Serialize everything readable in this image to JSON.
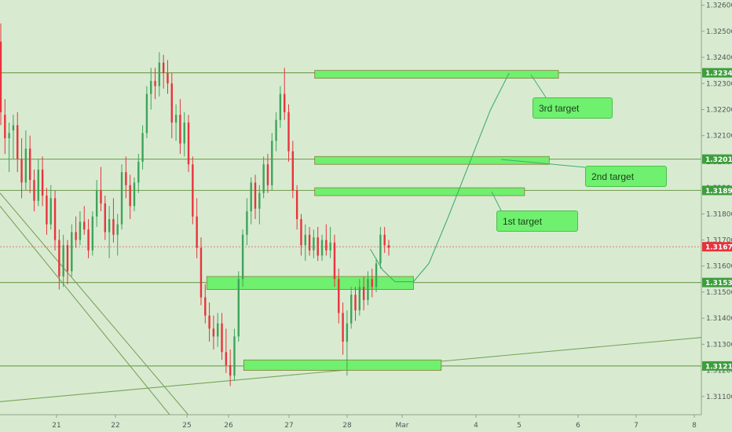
{
  "chart_data": {
    "type": "candlestick",
    "ylim": [
      1.3103,
      1.3262
    ],
    "x_days": [
      20.6,
      29.0
    ],
    "y_tick_labels": [
      "1.32600",
      "1.32500",
      "1.32400",
      "1.32300",
      "1.32200",
      "1.32100",
      "1.32000",
      "1.31900",
      "1.31800",
      "1.31700",
      "1.31600",
      "1.31500",
      "1.31400",
      "1.31300",
      "1.31200",
      "1.31100"
    ],
    "y_ticks": [
      1.326,
      1.325,
      1.324,
      1.323,
      1.322,
      1.321,
      1.32,
      1.319,
      1.318,
      1.317,
      1.316,
      1.315,
      1.314,
      1.313,
      1.312,
      1.311
    ],
    "x_ticks": [
      {
        "label": "21",
        "day": 21
      },
      {
        "label": "22",
        "day": 22
      },
      {
        "label": "25",
        "day": 23
      },
      {
        "label": "26",
        "day": 23.7
      },
      {
        "label": "27",
        "day": 24.7
      },
      {
        "label": "28",
        "day": 25.7
      },
      {
        "label": "Mar",
        "day": 26.7
      },
      {
        "label": "4",
        "day": 27.95
      },
      {
        "label": "5",
        "day": 28.95
      },
      {
        "label": "6",
        "day": 29.95
      },
      {
        "label": "7",
        "day": 30.95
      },
      {
        "label": "8",
        "day": 31.95
      }
    ],
    "levels": [
      {
        "label": "1.32341",
        "price": 1.32341,
        "style": "green"
      },
      {
        "label": "1.32010",
        "price": 1.3201,
        "style": "green"
      },
      {
        "label": "1.31890",
        "price": 1.3189,
        "style": "green"
      },
      {
        "label": "1.31674",
        "price": 1.31674,
        "style": "red"
      },
      {
        "label": "1.31537",
        "price": 1.31537,
        "style": "green"
      },
      {
        "label": "1.31217",
        "price": 1.31217,
        "style": "green"
      }
    ],
    "zones": [
      {
        "price_low": 1.3232,
        "price_high": 1.3235,
        "day_start": 25.7,
        "day_end": 29.65
      },
      {
        "price_low": 1.3199,
        "price_high": 1.3202,
        "day_start": 25.7,
        "day_end": 29.5
      },
      {
        "price_low": 1.3187,
        "price_high": 1.319,
        "day_start": 25.7,
        "day_end": 29.1
      },
      {
        "price_low": 1.3151,
        "price_high": 1.3156,
        "day_start": 23.95,
        "day_end": 27.3
      },
      {
        "price_low": 1.312,
        "price_high": 1.3124,
        "day_start": 24.55,
        "day_end": 27.75
      }
    ],
    "candles": [
      [
        1.3246,
        1.3253,
        1.3214,
        1.3219
      ],
      [
        1.3218,
        1.3224,
        1.3203,
        1.3209
      ],
      [
        1.3209,
        1.3215,
        1.3196,
        1.3211
      ],
      [
        1.3212,
        1.3218,
        1.3201,
        1.3214
      ],
      [
        1.3214,
        1.3219,
        1.3196,
        1.3201
      ],
      [
        1.3201,
        1.3209,
        1.3186,
        1.3192
      ],
      [
        1.3192,
        1.3212,
        1.3189,
        1.3205
      ],
      [
        1.3205,
        1.321,
        1.3188,
        1.3193
      ],
      [
        1.3193,
        1.3197,
        1.3181,
        1.3185
      ],
      [
        1.3185,
        1.3201,
        1.3183,
        1.3197
      ],
      [
        1.3197,
        1.3202,
        1.3183,
        1.3187
      ],
      [
        1.3187,
        1.319,
        1.3172,
        1.3176
      ],
      [
        1.3176,
        1.3191,
        1.3174,
        1.3186
      ],
      [
        1.3186,
        1.3189,
        1.3166,
        1.317
      ],
      [
        1.317,
        1.3174,
        1.3151,
        1.3156
      ],
      [
        1.3156,
        1.3172,
        1.3152,
        1.3168
      ],
      [
        1.3168,
        1.317,
        1.3153,
        1.3158
      ],
      [
        1.3158,
        1.3176,
        1.3156,
        1.3173
      ],
      [
        1.3173,
        1.3179,
        1.3167,
        1.317
      ],
      [
        1.317,
        1.3181,
        1.3168,
        1.3177
      ],
      [
        1.3177,
        1.3183,
        1.3172,
        1.3174
      ],
      [
        1.3174,
        1.3178,
        1.3163,
        1.3166
      ],
      [
        1.3166,
        1.3181,
        1.3164,
        1.3179
      ],
      [
        1.3179,
        1.3193,
        1.3175,
        1.3189
      ],
      [
        1.3189,
        1.3198,
        1.3181,
        1.3184
      ],
      [
        1.3184,
        1.3187,
        1.317,
        1.3173
      ],
      [
        1.3173,
        1.3183,
        1.3163,
        1.3178
      ],
      [
        1.3178,
        1.3186,
        1.3169,
        1.3172
      ],
      [
        1.3172,
        1.318,
        1.3164,
        1.3176
      ],
      [
        1.3176,
        1.3199,
        1.3174,
        1.3196
      ],
      [
        1.3196,
        1.3202,
        1.3186,
        1.3191
      ],
      [
        1.3191,
        1.3195,
        1.3178,
        1.3183
      ],
      [
        1.3183,
        1.3194,
        1.3181,
        1.3192
      ],
      [
        1.3192,
        1.3203,
        1.3188,
        1.32
      ],
      [
        1.32,
        1.3214,
        1.3197,
        1.3211
      ],
      [
        1.3211,
        1.3229,
        1.3209,
        1.3226
      ],
      [
        1.3226,
        1.3236,
        1.322,
        1.3231
      ],
      [
        1.3231,
        1.3236,
        1.3224,
        1.3229
      ],
      [
        1.3229,
        1.3242,
        1.3225,
        1.3238
      ],
      [
        1.3238,
        1.3241,
        1.3228,
        1.3234
      ],
      [
        1.3234,
        1.3239,
        1.3226,
        1.323
      ],
      [
        1.323,
        1.3234,
        1.3209,
        1.3215
      ],
      [
        1.3215,
        1.3222,
        1.3208,
        1.3218
      ],
      [
        1.3218,
        1.3224,
        1.3203,
        1.3207
      ],
      [
        1.3207,
        1.3219,
        1.3202,
        1.3215
      ],
      [
        1.3215,
        1.3218,
        1.3196,
        1.3199
      ],
      [
        1.3199,
        1.3202,
        1.3176,
        1.3179
      ],
      [
        1.3179,
        1.3186,
        1.3163,
        1.3167
      ],
      [
        1.3167,
        1.3171,
        1.3145,
        1.3148
      ],
      [
        1.3148,
        1.3153,
        1.3138,
        1.3141
      ],
      [
        1.3141,
        1.3146,
        1.3131,
        1.3136
      ],
      [
        1.3136,
        1.3141,
        1.3128,
        1.3133
      ],
      [
        1.3133,
        1.3142,
        1.3129,
        1.3138
      ],
      [
        1.3138,
        1.3142,
        1.3124,
        1.3127
      ],
      [
        1.3127,
        1.3136,
        1.3119,
        1.3122
      ],
      [
        1.3122,
        1.3128,
        1.3114,
        1.3118
      ],
      [
        1.3118,
        1.3136,
        1.3116,
        1.3133
      ],
      [
        1.3133,
        1.3158,
        1.3131,
        1.3155
      ],
      [
        1.3155,
        1.3174,
        1.3152,
        1.3172
      ],
      [
        1.3172,
        1.3186,
        1.3168,
        1.3181
      ],
      [
        1.3181,
        1.3194,
        1.3176,
        1.3192
      ],
      [
        1.3192,
        1.3195,
        1.3178,
        1.3182
      ],
      [
        1.3182,
        1.3191,
        1.3176,
        1.3188
      ],
      [
        1.3188,
        1.3202,
        1.3186,
        1.3199
      ],
      [
        1.3199,
        1.3203,
        1.3188,
        1.3191
      ],
      [
        1.3191,
        1.3211,
        1.3189,
        1.3208
      ],
      [
        1.3208,
        1.3219,
        1.3204,
        1.3216
      ],
      [
        1.3216,
        1.3229,
        1.3213,
        1.3226
      ],
      [
        1.3226,
        1.3236,
        1.3216,
        1.3219
      ],
      [
        1.3219,
        1.3222,
        1.32,
        1.3204
      ],
      [
        1.3204,
        1.3208,
        1.3186,
        1.3189
      ],
      [
        1.3189,
        1.3191,
        1.3174,
        1.3178
      ],
      [
        1.3178,
        1.318,
        1.3164,
        1.3168
      ],
      [
        1.3168,
        1.3176,
        1.3162,
        1.3172
      ],
      [
        1.3172,
        1.3175,
        1.3164,
        1.3166
      ],
      [
        1.3166,
        1.3174,
        1.3163,
        1.3171
      ],
      [
        1.3171,
        1.3175,
        1.3162,
        1.3164
      ],
      [
        1.3164,
        1.3172,
        1.3162,
        1.317
      ],
      [
        1.317,
        1.3176,
        1.3164,
        1.3166
      ],
      [
        1.3166,
        1.3175,
        1.3163,
        1.3169
      ],
      [
        1.3169,
        1.3172,
        1.3152,
        1.3155
      ],
      [
        1.3155,
        1.3159,
        1.3138,
        1.3142
      ],
      [
        1.3142,
        1.3146,
        1.3126,
        1.3131
      ],
      [
        1.3131,
        1.3143,
        1.3118,
        1.3138
      ],
      [
        1.3138,
        1.3152,
        1.3136,
        1.3149
      ],
      [
        1.3149,
        1.3152,
        1.3139,
        1.3143
      ],
      [
        1.3143,
        1.3155,
        1.3141,
        1.3152
      ],
      [
        1.3152,
        1.3156,
        1.3143,
        1.3147
      ],
      [
        1.3147,
        1.3158,
        1.3145,
        1.3155
      ],
      [
        1.3155,
        1.3159,
        1.3148,
        1.3152
      ],
      [
        1.3152,
        1.3163,
        1.315,
        1.3161
      ],
      [
        1.3161,
        1.3175,
        1.3159,
        1.3172
      ],
      [
        1.3172,
        1.3175,
        1.3165,
        1.3168
      ],
      [
        1.3168,
        1.317,
        1.3164,
        1.3167
      ]
    ],
    "projection_path": [
      [
        26.6,
        1.31665
      ],
      [
        26.8,
        1.31585
      ],
      [
        27.0,
        1.3154
      ],
      [
        27.3,
        1.3154
      ],
      [
        27.55,
        1.3161
      ],
      [
        27.85,
        1.3178
      ],
      [
        28.2,
        1.3199
      ],
      [
        28.55,
        1.322
      ],
      [
        28.85,
        1.3234
      ]
    ],
    "pointer_from": [
      [
        28.95,
        1.3233
      ],
      [
        28.95,
        1.3202
      ],
      [
        26.6,
        1.3188
      ]
    ],
    "trendlines": [
      {
        "from": [
          20.6,
          1.3188
        ],
        "to": [
          23.65,
          1.3103
        ]
      },
      {
        "from": [
          20.6,
          1.3183
        ],
        "to": [
          23.35,
          1.3103
        ]
      },
      {
        "from": [
          20.6,
          1.3108
        ],
        "to": [
          32.6,
          1.3134
        ]
      }
    ]
  },
  "annotations": [
    {
      "text": "3rd target"
    },
    {
      "text": "2nd target"
    },
    {
      "text": "1st target"
    }
  ],
  "colors": {
    "background": "#d8ebd1",
    "up_candle": "#3fa35a",
    "down_candle": "#e8333c",
    "level_line": "#7aa35a",
    "zone_fill": "#6ff06f",
    "current_price_line": "#e05555",
    "current_price_tag": "#e8333c",
    "level_tag": "#3e9e3e"
  }
}
